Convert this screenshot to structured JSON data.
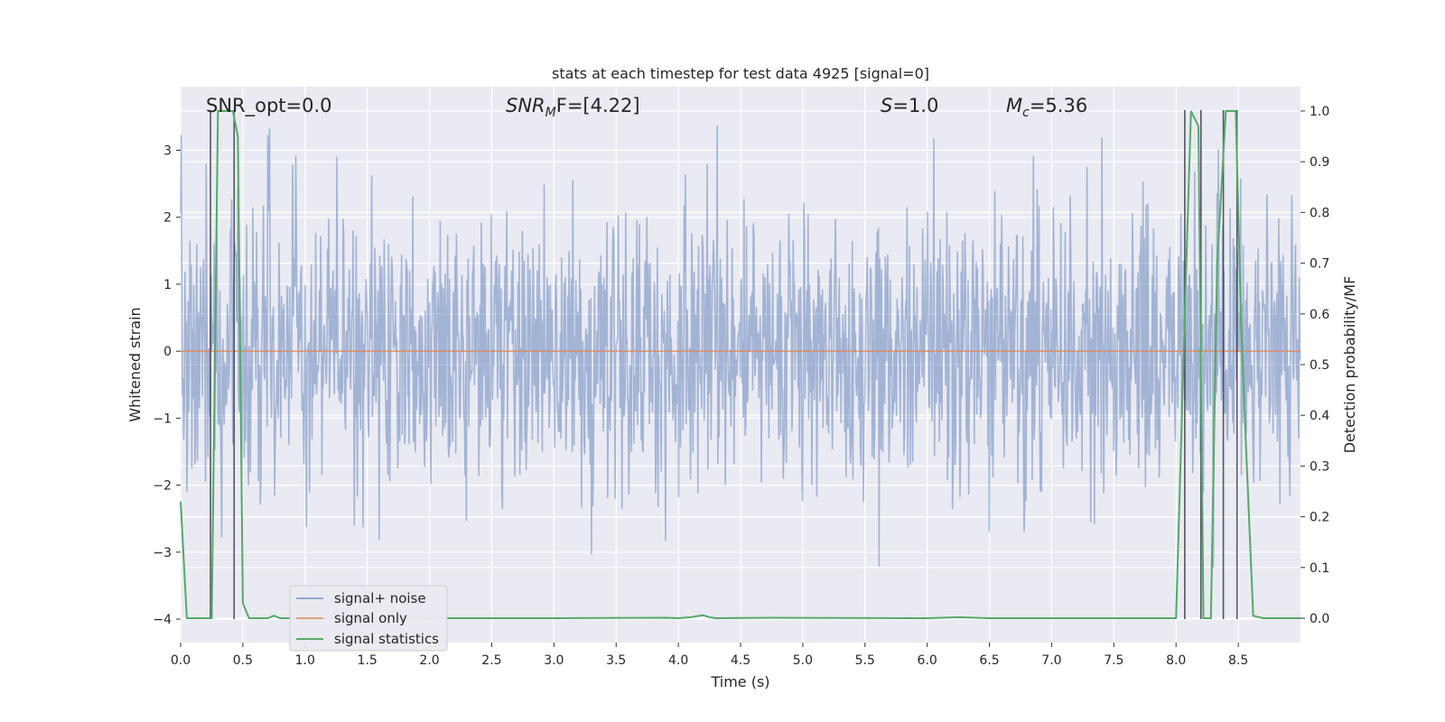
{
  "chart_data": {
    "type": "line",
    "title": "stats at each timestep for test data 4925 [signal=0]",
    "xlabel": "Time (s)",
    "ylabel_left": "Whitened strain",
    "ylabel_right": "Detection probability/MF",
    "xlim": [
      0.0,
      9.0
    ],
    "ylim_left": [
      -4.35,
      3.95
    ],
    "ylim_right": [
      -0.048,
      1.048
    ],
    "x_ticks": [
      "0.0",
      "0.5",
      "1.0",
      "1.5",
      "2.0",
      "2.5",
      "3.0",
      "3.5",
      "4.0",
      "4.5",
      "5.0",
      "5.5",
      "6.0",
      "6.5",
      "7.0",
      "7.5",
      "8.0",
      "8.5"
    ],
    "x_tick_values": [
      0.0,
      0.5,
      1.0,
      1.5,
      2.0,
      2.5,
      3.0,
      3.5,
      4.0,
      4.5,
      5.0,
      5.5,
      6.0,
      6.5,
      7.0,
      7.5,
      8.0,
      8.5
    ],
    "y_left_ticks": [
      "−4",
      "−3",
      "−2",
      "−1",
      "0",
      "1",
      "2",
      "3"
    ],
    "y_left_tick_values": [
      -4,
      -3,
      -2,
      -1,
      0,
      1,
      2,
      3
    ],
    "y_right_ticks": [
      "0.0",
      "0.1",
      "0.2",
      "0.3",
      "0.4",
      "0.5",
      "0.6",
      "0.7",
      "0.8",
      "0.9",
      "1.0"
    ],
    "y_right_tick_values": [
      0.0,
      0.1,
      0.2,
      0.3,
      0.4,
      0.5,
      0.6,
      0.7,
      0.8,
      0.9,
      1.0
    ],
    "grid": true,
    "legend_position": "lower-left",
    "legend": [
      "signal+ noise",
      "signal only",
      "signal statistics"
    ],
    "colors": {
      "noise": "#4c72b0",
      "signal_only": "#dd8452",
      "statistics": "#55a868",
      "vlines": "#3a3a4a",
      "background": "#eaeaf2",
      "grid": "#ffffff"
    },
    "annotations": {
      "snr_opt": "SNR_opt=0.0",
      "snr_mf_text": "SNR",
      "snr_mf_sub": "M",
      "snr_mf_rest": "F=[4.22]",
      "s_label": "S",
      "s_rest": "=1.0",
      "mc_label": "M",
      "mc_sub": "c",
      "mc_rest": "=5.36"
    },
    "series": [
      {
        "name": "signal+ noise",
        "description_level": "noisy strain, typical band ±2, extremes from about −4.0 to 3.4",
        "seed": 4925,
        "n_samples": 1800
      },
      {
        "name": "signal only",
        "x": [
          0.0,
          9.0
        ],
        "y": [
          0.0,
          0.0
        ]
      },
      {
        "name": "signal statistics",
        "x": [
          0.0,
          0.05,
          0.25,
          0.3,
          0.42,
          0.46,
          0.5,
          0.55,
          0.7,
          0.75,
          0.8,
          3.0,
          3.9,
          4.0,
          4.1,
          4.2,
          4.25,
          4.3,
          4.75,
          6.0,
          6.25,
          6.5,
          8.0,
          8.08,
          8.12,
          8.18,
          8.22,
          8.28,
          8.33,
          8.4,
          8.48,
          8.52,
          8.56,
          8.62,
          8.7,
          9.0
        ],
        "y": [
          0.23,
          0.0,
          0.0,
          1.0,
          1.0,
          0.95,
          0.03,
          0.0,
          0.0,
          0.005,
          0.0,
          0.0,
          0.001,
          0.0,
          0.002,
          0.006,
          0.002,
          0.0,
          0.001,
          0.0,
          0.002,
          0.0,
          0.0,
          0.68,
          1.0,
          0.97,
          0.0,
          0.0,
          0.7,
          1.0,
          1.0,
          0.6,
          0.35,
          0.005,
          0.0,
          0.0
        ]
      }
    ],
    "vlines": [
      0.24,
      0.43,
      8.07,
      8.2,
      8.38,
      8.49
    ],
    "vline_range_left": [
      -4.0,
      3.6
    ]
  }
}
